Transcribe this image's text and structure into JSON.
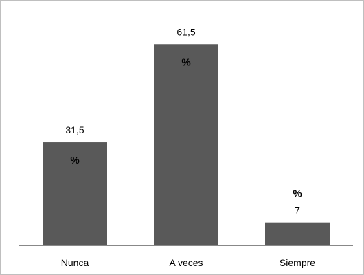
{
  "chart_data": {
    "type": "bar",
    "categories": [
      "Nunca",
      "A veces",
      "Siempre"
    ],
    "values": [
      31.5,
      61.5,
      7
    ],
    "value_labels": [
      "31,5",
      "61,5",
      "7"
    ],
    "unit_labels": [
      "%",
      "%",
      "%"
    ],
    "title": "",
    "xlabel": "",
    "ylabel": "",
    "ylim": [
      0,
      70
    ],
    "grid": false,
    "legend": "none",
    "bar_color": "#595959",
    "axis_color": "#888888",
    "border_color": "#bfbfbf"
  }
}
